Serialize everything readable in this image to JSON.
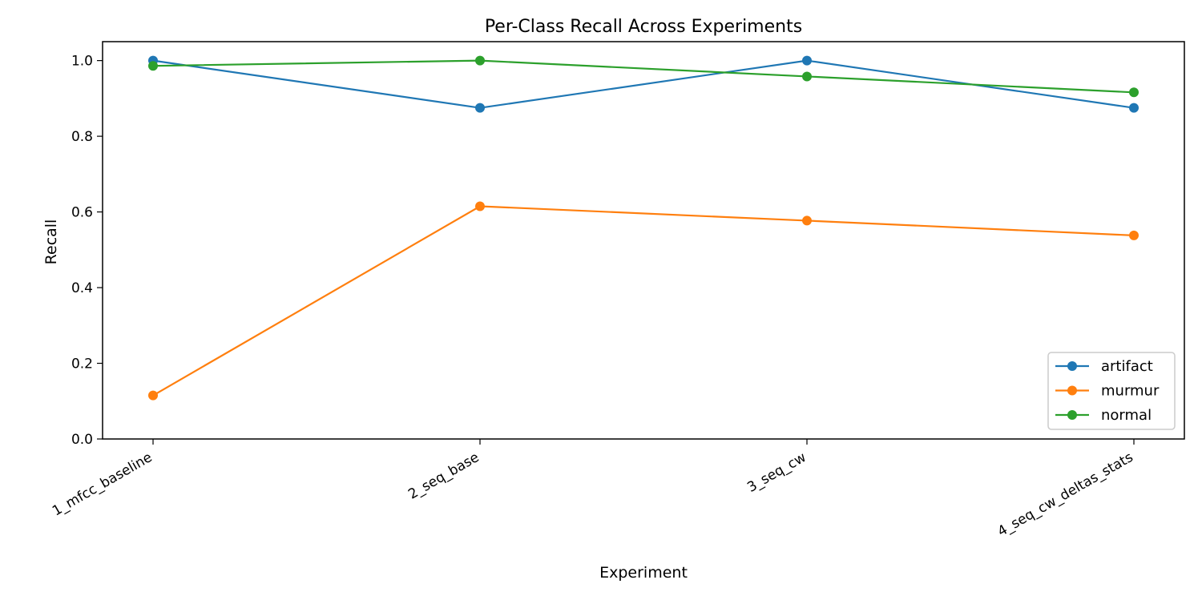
{
  "chart_data": {
    "type": "line",
    "title": "Per-Class Recall Across Experiments",
    "xlabel": "Experiment",
    "ylabel": "Recall",
    "categories": [
      "1_mfcc_baseline",
      "2_seq_base",
      "3_seq_cw",
      "4_seq_cw_deltas_stats"
    ],
    "ylim": [
      0.0,
      1.05
    ],
    "yticks": [
      "0.0",
      "0.2",
      "0.4",
      "0.6",
      "0.8",
      "1.0"
    ],
    "grid": false,
    "legend_position": "lower-right",
    "series": [
      {
        "name": "artifact",
        "color": "#1f77b4",
        "values": [
          1.0,
          0.875,
          1.0,
          0.875
        ]
      },
      {
        "name": "murmur",
        "color": "#ff7f0e",
        "values": [
          0.115,
          0.615,
          0.577,
          0.538
        ]
      },
      {
        "name": "normal",
        "color": "#2ca02c",
        "values": [
          0.986,
          1.0,
          0.958,
          0.916
        ]
      }
    ]
  }
}
